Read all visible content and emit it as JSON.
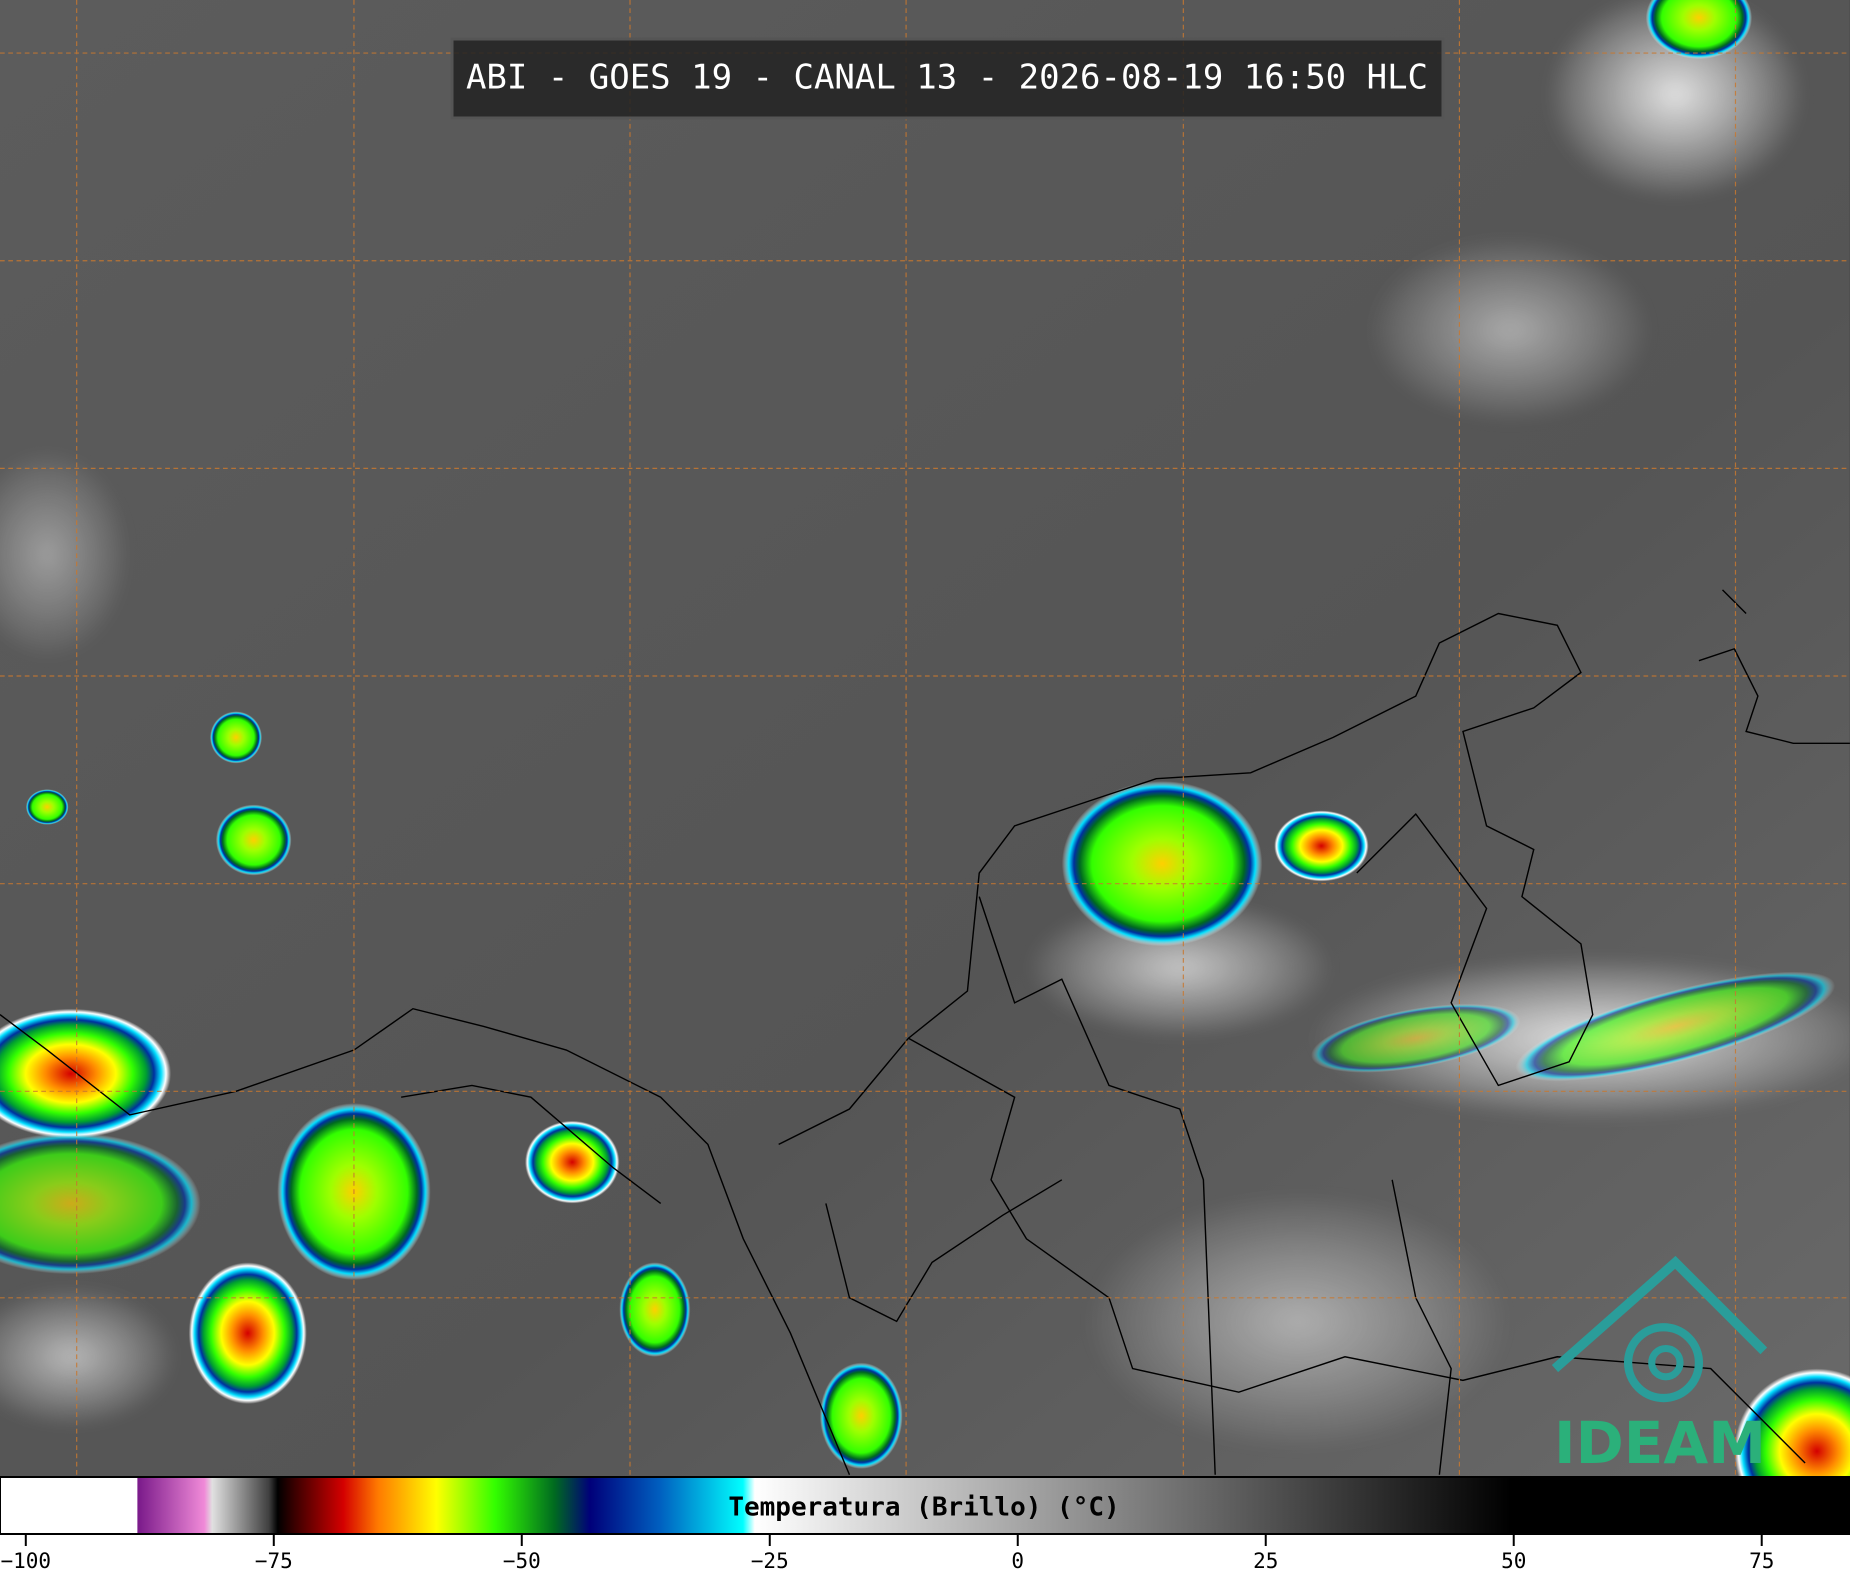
{
  "title": "ABI - GOES 19 - CANAL 13 - 2026-08-19 16:50 HLC",
  "colorbar": {
    "label": "Temperatura (Brillo) (°C)",
    "range": [
      -102.6,
      83.9
    ],
    "ticks": [
      {
        "value": -100,
        "label": "−100"
      },
      {
        "value": -75,
        "label": "−75"
      },
      {
        "value": -50,
        "label": "−50"
      },
      {
        "value": -25,
        "label": "−25"
      },
      0,
      25,
      50,
      75
    ],
    "colormap": [
      {
        "value": -102.6,
        "color": "#ffffff"
      },
      {
        "value": -88.8,
        "color": "#ffffff"
      },
      {
        "value": -88.7,
        "color": "#7a1a8a"
      },
      {
        "value": -82,
        "color": "#f08ad8"
      },
      {
        "value": -81.2,
        "color": "#e0e0e0"
      },
      {
        "value": -75.5,
        "color": "#404040"
      },
      {
        "value": -74.6,
        "color": "#000000"
      },
      {
        "value": -72.9,
        "color": "#3a0000"
      },
      {
        "value": -68,
        "color": "#d40000"
      },
      {
        "value": -64.5,
        "color": "#ff7a00"
      },
      {
        "value": -58.6,
        "color": "#ffff00"
      },
      {
        "value": -52.7,
        "color": "#33ff00"
      },
      {
        "value": -46.7,
        "color": "#006a20"
      },
      {
        "value": -43.1,
        "color": "#00007a"
      },
      {
        "value": -36,
        "color": "#0060c0"
      },
      {
        "value": -27.7,
        "color": "#00ffff"
      },
      {
        "value": -26.5,
        "color": "#ffffff"
      },
      {
        "value": 49.7,
        "color": "#000000"
      },
      {
        "value": 83.9,
        "color": "#000000"
      }
    ]
  },
  "logo": {
    "text": "IDEAM"
  }
}
